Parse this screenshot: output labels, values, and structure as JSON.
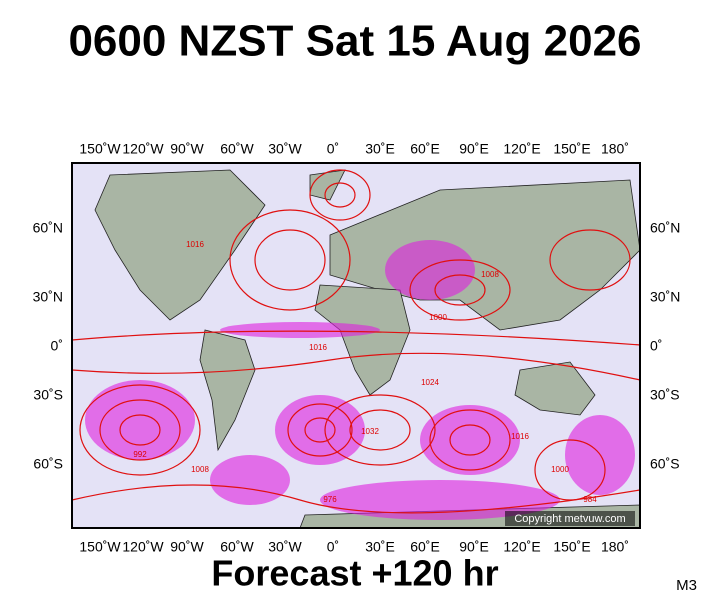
{
  "header": {
    "title": "0600 NZST Sat 15 Aug 2026"
  },
  "map": {
    "top_axis_labels": [
      "150˚W",
      "120˚W",
      "90˚W",
      "60˚W",
      "30˚W",
      "0˚",
      "30˚E",
      "60˚E",
      "90˚E",
      "120˚E",
      "150˚E",
      "180˚"
    ],
    "bottom_axis_labels": [
      "150˚W",
      "120˚W",
      "90˚W",
      "60˚W",
      "30˚W",
      "0˚",
      "30˚E",
      "60˚E",
      "90˚E",
      "120˚E",
      "150˚E",
      "180˚"
    ],
    "left_axis_labels": [
      "60˚N",
      "30˚N",
      "0˚",
      "30˚S",
      "60˚S"
    ],
    "right_axis_labels": [
      "60˚N",
      "30˚N",
      "0˚",
      "30˚S",
      "60˚S"
    ],
    "isobar_labels": [
      "1016",
      "1008",
      "1000",
      "1016",
      "1024",
      "1032",
      "1016",
      "992",
      "1008",
      "1000",
      "984",
      "976"
    ],
    "copyright": "Copyright metvuw.com"
  },
  "footer": {
    "forecast": "Forecast +120 hr",
    "model": "M3"
  }
}
